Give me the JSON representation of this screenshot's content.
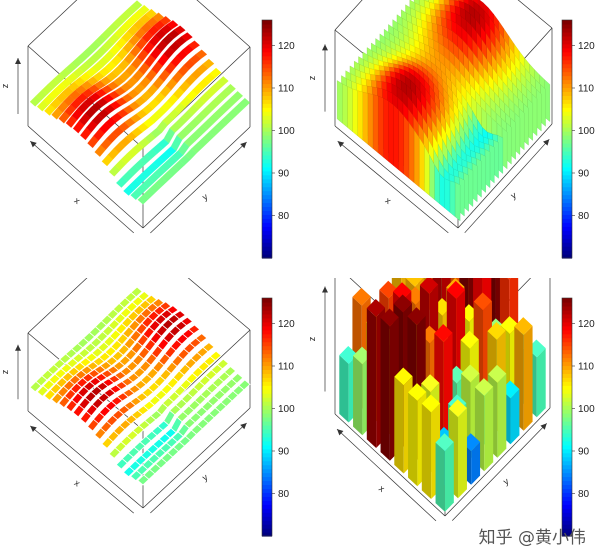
{
  "chart_data": [
    {
      "type": "ribbon3d",
      "style": "flat-ribbons",
      "xlabel": "x",
      "ylabel": "y",
      "zlabel": "z",
      "colorbar": {
        "ticks": [
          80,
          90,
          100,
          110,
          120
        ],
        "range": [
          70,
          126
        ]
      }
    },
    {
      "type": "ribbon3d",
      "style": "vertical-ribbons",
      "xlabel": "x",
      "ylabel": "y",
      "zlabel": "z",
      "colorbar": {
        "ticks": [
          80,
          90,
          100,
          110,
          120
        ],
        "range": [
          70,
          126
        ]
      }
    },
    {
      "type": "ribbon3d",
      "style": "meshed-ribbons",
      "xlabel": "x",
      "ylabel": "y",
      "zlabel": "z",
      "colorbar": {
        "ticks": [
          80,
          90,
          100,
          110,
          120
        ],
        "range": [
          70,
          126
        ]
      }
    },
    {
      "type": "hist3d",
      "style": "bars",
      "xlabel": "x",
      "ylabel": "y",
      "zlabel": "z",
      "colorbar": {
        "ticks": [
          80,
          90,
          100,
          110,
          120
        ],
        "range": [
          70,
          126
        ]
      }
    }
  ],
  "watermark": "知乎 @黄小伟"
}
